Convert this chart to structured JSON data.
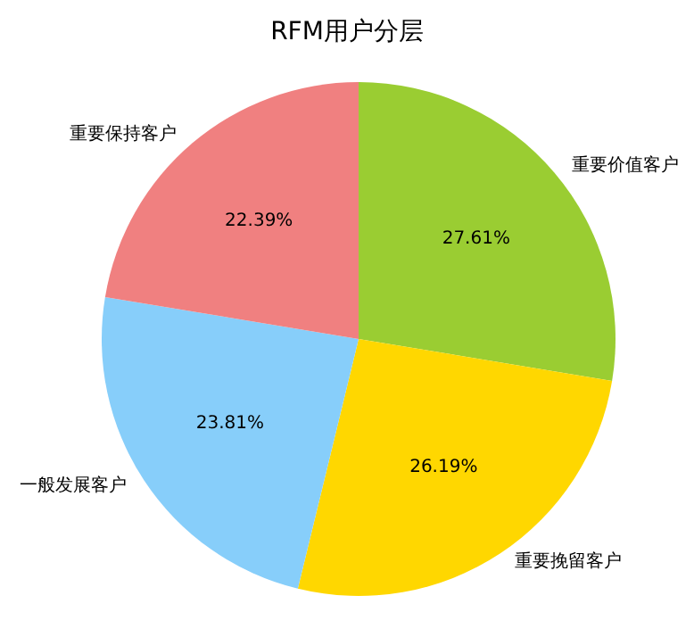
{
  "chart_data": {
    "type": "pie",
    "title": "RFM用户分层",
    "categories": [
      "重要价值客户",
      "重要挽留客户",
      "一般发展客户",
      "重要保持客户"
    ],
    "values": [
      27.61,
      26.19,
      23.81,
      22.39
    ],
    "value_labels": [
      "27.61%",
      "26.19%",
      "23.81%",
      "22.39%"
    ],
    "colors": [
      "#9acd32",
      "#ffd700",
      "#87cefa",
      "#f08080"
    ],
    "legend": false
  }
}
